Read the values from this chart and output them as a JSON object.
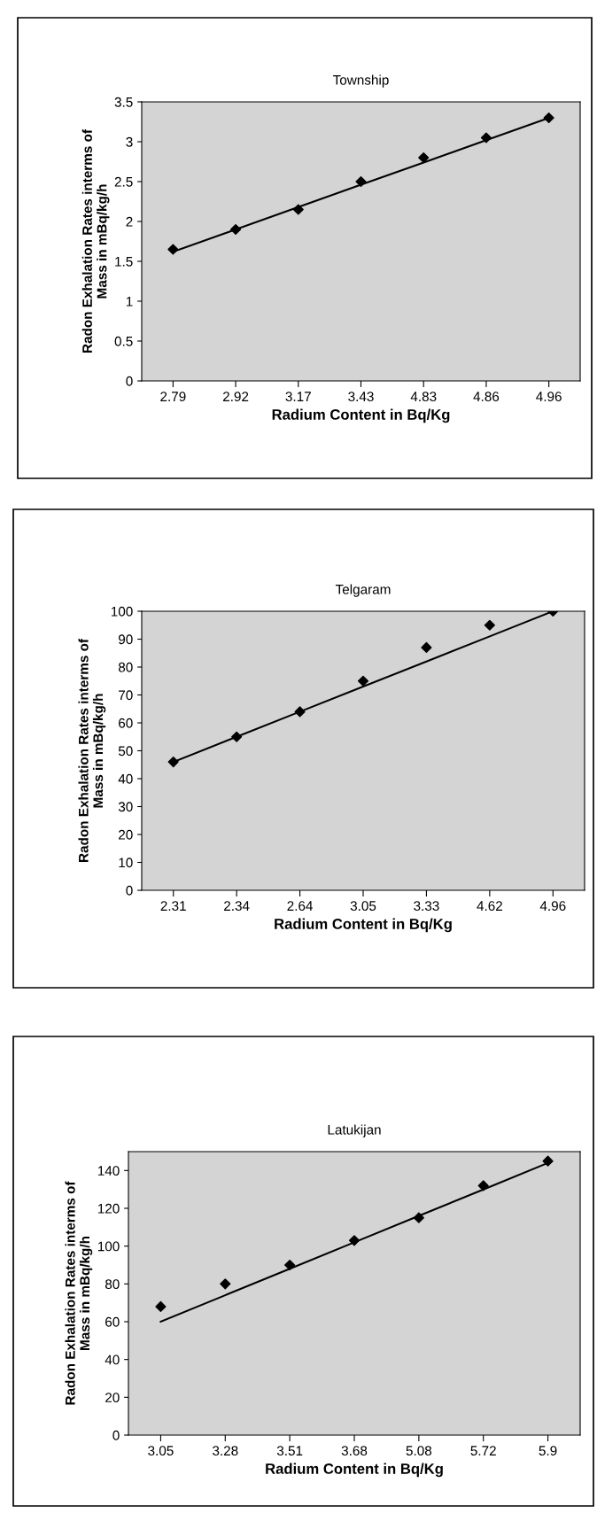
{
  "chart_data": [
    {
      "type": "scatter",
      "title": "Township",
      "xlabel": "Radium Content in Bq/Kg",
      "ylabel": "Radon Exhalation Rates interms of\nMass in mBq/kg/h",
      "categories": [
        "2.79",
        "2.92",
        "3.17",
        "3.43",
        "4.83",
        "4.86",
        "4.96"
      ],
      "ylim": [
        0,
        3.5
      ],
      "yticks": [
        0,
        0.5,
        1,
        1.5,
        2,
        2.5,
        3,
        3.5
      ],
      "grid": false,
      "legend": false,
      "series": [
        {
          "marker": "diamond",
          "color": "#000000",
          "values": [
            1.65,
            1.9,
            2.15,
            2.5,
            2.8,
            3.05,
            3.3
          ]
        },
        {
          "type": "line",
          "color": "#000000",
          "values": [
            1.62,
            1.9,
            2.18,
            2.46,
            2.74,
            3.02,
            3.3
          ]
        }
      ]
    },
    {
      "type": "scatter",
      "title": "Telgaram",
      "xlabel": "Radium Content in Bq/Kg",
      "ylabel": "Radon Exhalation Rates interms of\nMass in mBq/kg/h",
      "categories": [
        "2.31",
        "2.34",
        "2.64",
        "3.05",
        "3.33",
        "4.62",
        "4.96"
      ],
      "ylim": [
        0,
        100
      ],
      "yticks": [
        0,
        10,
        20,
        30,
        40,
        50,
        60,
        70,
        80,
        90,
        100
      ],
      "grid": false,
      "legend": false,
      "series": [
        {
          "marker": "diamond",
          "color": "#000000",
          "values": [
            46,
            55,
            64,
            75,
            87,
            95,
            100
          ]
        },
        {
          "type": "line",
          "color": "#000000",
          "values": [
            46,
            55,
            64,
            73,
            82,
            91,
            100
          ]
        }
      ]
    },
    {
      "type": "scatter",
      "title": "Latukijan",
      "xlabel": "Radium Content in Bq/Kg",
      "ylabel": "Radon Exhalation Rates interms of\nMass in mBq/kg/h",
      "categories": [
        "3.05",
        "3.28",
        "3.51",
        "3.68",
        "5.08",
        "5.72",
        "5.9"
      ],
      "ylim": [
        0,
        150
      ],
      "yticks": [
        0,
        20,
        40,
        60,
        80,
        100,
        120,
        140
      ],
      "grid": false,
      "legend": false,
      "series": [
        {
          "marker": "diamond",
          "color": "#000000",
          "values": [
            68,
            80,
            90,
            103,
            115,
            132,
            145
          ]
        },
        {
          "type": "line",
          "color": "#000000",
          "values": [
            60,
            74,
            88,
            102,
            116,
            130,
            144
          ]
        }
      ]
    }
  ]
}
